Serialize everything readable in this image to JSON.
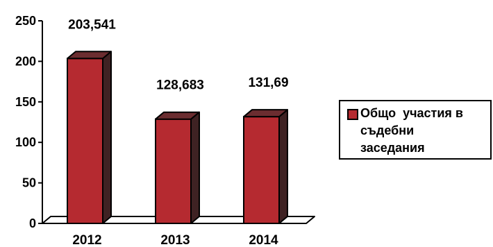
{
  "chart_data": {
    "type": "bar",
    "categories": [
      "2012",
      "2013",
      "2014"
    ],
    "series": [
      {
        "name": "Общо  участия в съдебни заседания",
        "values": [
          203.541,
          128.683,
          131.69
        ]
      }
    ],
    "data_labels": [
      "203,541",
      "128,683",
      "131,69"
    ],
    "ylim": [
      0,
      250
    ],
    "yticks": [
      0,
      50,
      100,
      150,
      200,
      250
    ],
    "ytick_labels": [
      "0",
      "50",
      "100",
      "150",
      "200",
      "250"
    ],
    "style": "3d-column",
    "grid": false,
    "legend_position": "right",
    "colors": {
      "bar_front": "#b52a30",
      "bar_side": "#3f2223",
      "bar_top": "#6b2d30",
      "outline": "#000000"
    }
  },
  "legend": {
    "label": "Общо  участия в\nсъдебни\nзаседания"
  }
}
